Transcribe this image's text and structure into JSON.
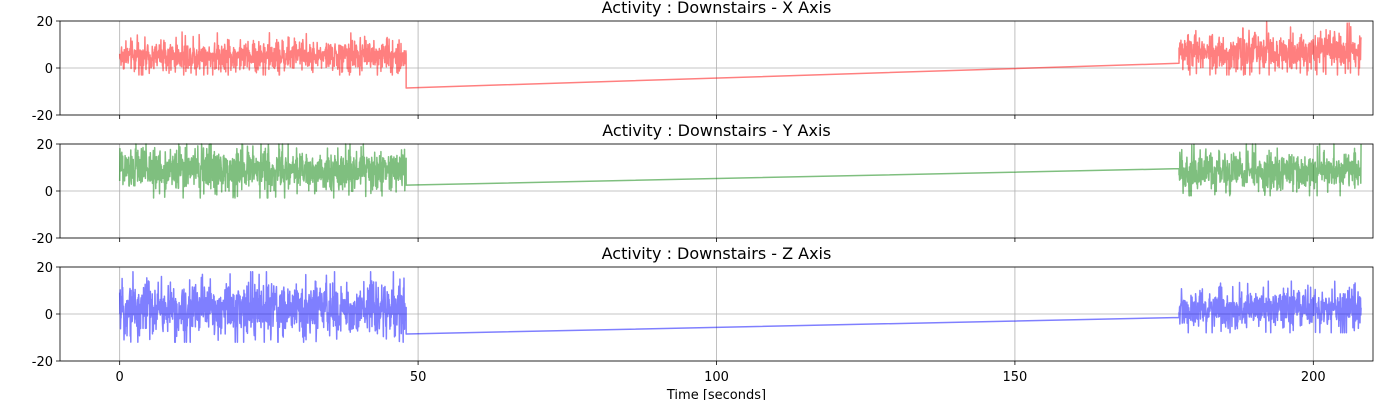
{
  "chart_data": [
    {
      "type": "line",
      "title": "Activity : Downstairs - X Axis",
      "xlabel": "",
      "ylabel": "",
      "xlim": [
        -10,
        210
      ],
      "ylim": [
        -20,
        20
      ],
      "xticks": [
        0,
        50,
        100,
        150,
        200
      ],
      "yticks": [
        -20,
        0,
        20
      ],
      "x_tick_labels_shown": false,
      "grid": true,
      "series": [
        {
          "color": "#ff0000",
          "alpha": 0.5,
          "segments": [
            {
              "kind": "noise",
              "x_start": 0,
              "x_end": 48,
              "mean": 5,
              "range": [
                -3,
                20
              ]
            },
            {
              "kind": "line",
              "points": [
                [
                  48,
                  5
                ],
                [
                  48,
                  -8.5
                ],
                [
                  177.5,
                  2
                ]
              ]
            },
            {
              "kind": "noise",
              "x_start": 177.5,
              "x_end": 208,
              "mean": 7,
              "range": [
                -3,
                20
              ]
            }
          ]
        }
      ]
    },
    {
      "type": "line",
      "title": "Activity : Downstairs - Y Axis",
      "xlabel": "",
      "ylabel": "",
      "xlim": [
        -10,
        210
      ],
      "ylim": [
        -20,
        20
      ],
      "xticks": [
        0,
        50,
        100,
        150,
        200
      ],
      "yticks": [
        -20,
        0,
        20
      ],
      "x_tick_labels_shown": false,
      "grid": true,
      "series": [
        {
          "color": "#008000",
          "alpha": 0.5,
          "segments": [
            {
              "kind": "noise",
              "x_start": 0,
              "x_end": 48,
              "mean": 9,
              "range": [
                -3,
                20
              ]
            },
            {
              "kind": "line",
              "points": [
                [
                  48,
                  9
                ],
                [
                  48,
                  2.5
                ],
                [
                  177.5,
                  9.5
                ]
              ]
            },
            {
              "kind": "noise",
              "x_start": 177.5,
              "x_end": 208,
              "mean": 8,
              "range": [
                -2,
                20
              ]
            }
          ]
        }
      ]
    },
    {
      "type": "line",
      "title": "Activity : Downstairs - Z Axis",
      "xlabel": "Time [seconds]",
      "ylabel": "",
      "xlim": [
        -10,
        210
      ],
      "ylim": [
        -20,
        20
      ],
      "xticks": [
        0,
        50,
        100,
        150,
        200
      ],
      "yticks": [
        -20,
        0,
        20
      ],
      "x_tick_labels_shown": true,
      "grid": true,
      "series": [
        {
          "color": "#0000ff",
          "alpha": 0.5,
          "segments": [
            {
              "kind": "noise",
              "x_start": 0,
              "x_end": 48,
              "mean": 2,
              "range": [
                -12,
                18
              ]
            },
            {
              "kind": "line",
              "points": [
                [
                  48,
                  2
                ],
                [
                  48,
                  -8.5
                ],
                [
                  177.5,
                  -1.5
                ]
              ]
            },
            {
              "kind": "noise",
              "x_start": 177.5,
              "x_end": 208,
              "mean": 2,
              "range": [
                -8,
                14
              ]
            }
          ]
        }
      ]
    }
  ]
}
